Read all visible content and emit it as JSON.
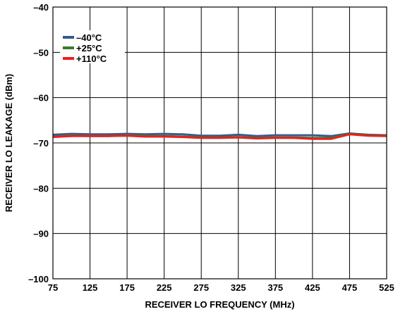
{
  "chart_data": {
    "type": "line",
    "title": "",
    "xlabel": "RECEIVER LO FREQUENCY (MHz)",
    "ylabel": "RECEIVER LO LEAKAGE (dBm)",
    "xlim": [
      75,
      525
    ],
    "ylim": [
      -100,
      -40
    ],
    "xticks": [
      75,
      125,
      175,
      225,
      275,
      325,
      375,
      425,
      475,
      525
    ],
    "yticks": [
      -100,
      -90,
      -80,
      -70,
      -60,
      -50,
      -40
    ],
    "xtick_labels": [
      "75",
      "125",
      "175",
      "225",
      "275",
      "325",
      "375",
      "425",
      "475",
      "525"
    ],
    "ytick_labels": [
      "–100",
      "–90",
      "–80",
      "–70",
      "–60",
      "–50",
      "–40"
    ],
    "grid": true,
    "legend_position": "top-left",
    "x": [
      75,
      100,
      125,
      150,
      175,
      200,
      225,
      250,
      275,
      300,
      325,
      350,
      375,
      400,
      425,
      450,
      475,
      500,
      525
    ],
    "series": [
      {
        "name": "–40°C",
        "color": "#3a5a8c",
        "values": [
          -68.2,
          -68.0,
          -68.1,
          -68.1,
          -68.0,
          -68.1,
          -68.0,
          -68.1,
          -68.4,
          -68.4,
          -68.2,
          -68.5,
          -68.3,
          -68.3,
          -68.3,
          -68.5,
          -67.9,
          -68.2,
          -68.3
        ]
      },
      {
        "name": "+25°C",
        "color": "#3b7a2a",
        "values": [
          -68.6,
          -68.4,
          -68.5,
          -68.5,
          -68.3,
          -68.5,
          -68.5,
          -68.6,
          -68.8,
          -68.8,
          -68.7,
          -68.9,
          -68.8,
          -68.8,
          -68.9,
          -68.9,
          -68.0,
          -68.3,
          -68.4
        ]
      },
      {
        "name": "+110°C",
        "color": "#e8201e",
        "values": [
          -68.7,
          -68.5,
          -68.5,
          -68.5,
          -68.4,
          -68.6,
          -68.6,
          -68.7,
          -68.9,
          -68.9,
          -68.8,
          -69.0,
          -68.9,
          -68.9,
          -69.1,
          -69.1,
          -68.1,
          -68.4,
          -68.5
        ]
      }
    ]
  }
}
